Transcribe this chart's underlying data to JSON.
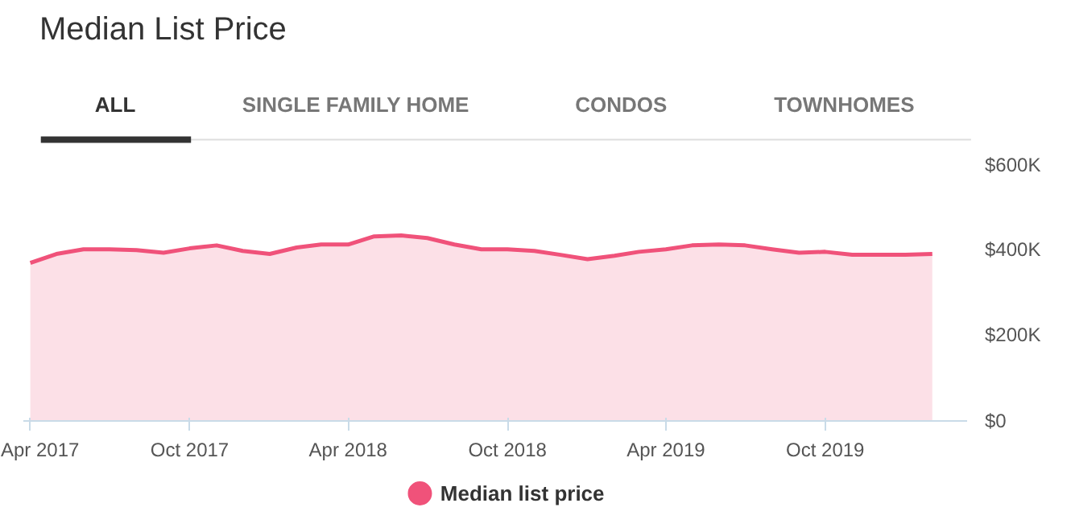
{
  "chart_data": {
    "type": "area",
    "title": "Median List Price",
    "annotations": [
      "ALL",
      "SINGLE FAMILY HOME",
      "CONDOS",
      "TOWNHOMES"
    ],
    "x": [
      "2017-04",
      "2017-05",
      "2017-06",
      "2017-07",
      "2017-08",
      "2017-09",
      "2017-10",
      "2017-11",
      "2017-12",
      "2018-01",
      "2018-02",
      "2018-03",
      "2018-04",
      "2018-05",
      "2018-06",
      "2018-07",
      "2018-08",
      "2018-09",
      "2018-10",
      "2018-11",
      "2018-12",
      "2019-01",
      "2019-02",
      "2019-03",
      "2019-04",
      "2019-05",
      "2019-06",
      "2019-07",
      "2019-08",
      "2019-09",
      "2019-10",
      "2019-11",
      "2019-12",
      "2020-01",
      "2020-02"
    ],
    "series": [
      {
        "name": "Median list price",
        "color": "#f0527a",
        "values": [
          368000,
          389000,
          400000,
          400000,
          398000,
          392000,
          402000,
          409000,
          396000,
          389000,
          404000,
          411000,
          411000,
          430000,
          432000,
          426000,
          411000,
          400000,
          400000,
          396000,
          387000,
          377000,
          385000,
          394000,
          400000,
          409000,
          411000,
          409000,
          400000,
          392000,
          394000,
          387000,
          387000,
          387000,
          389000
        ]
      }
    ],
    "xlim": [
      "2017-03-24",
      "2020-03-12"
    ],
    "xticks": [
      {
        "value": "2017-04",
        "label": "Apr 2017"
      },
      {
        "value": "2017-10",
        "label": "Oct 2017"
      },
      {
        "value": "2018-04",
        "label": "Apr 2018"
      },
      {
        "value": "2018-10",
        "label": "Oct 2018"
      },
      {
        "value": "2019-04",
        "label": "Apr 2019"
      },
      {
        "value": "2019-10",
        "label": "Oct 2019"
      }
    ],
    "ylim": [
      0,
      600000
    ],
    "yticks": [
      {
        "value": 0,
        "label": "$0"
      },
      {
        "value": 200000,
        "label": "$200K"
      },
      {
        "value": 400000,
        "label": "$400K"
      },
      {
        "value": 600000,
        "label": "$600K"
      }
    ],
    "grid": false,
    "legend": "bottom",
    "marker": "none",
    "line_style": "solid"
  }
}
